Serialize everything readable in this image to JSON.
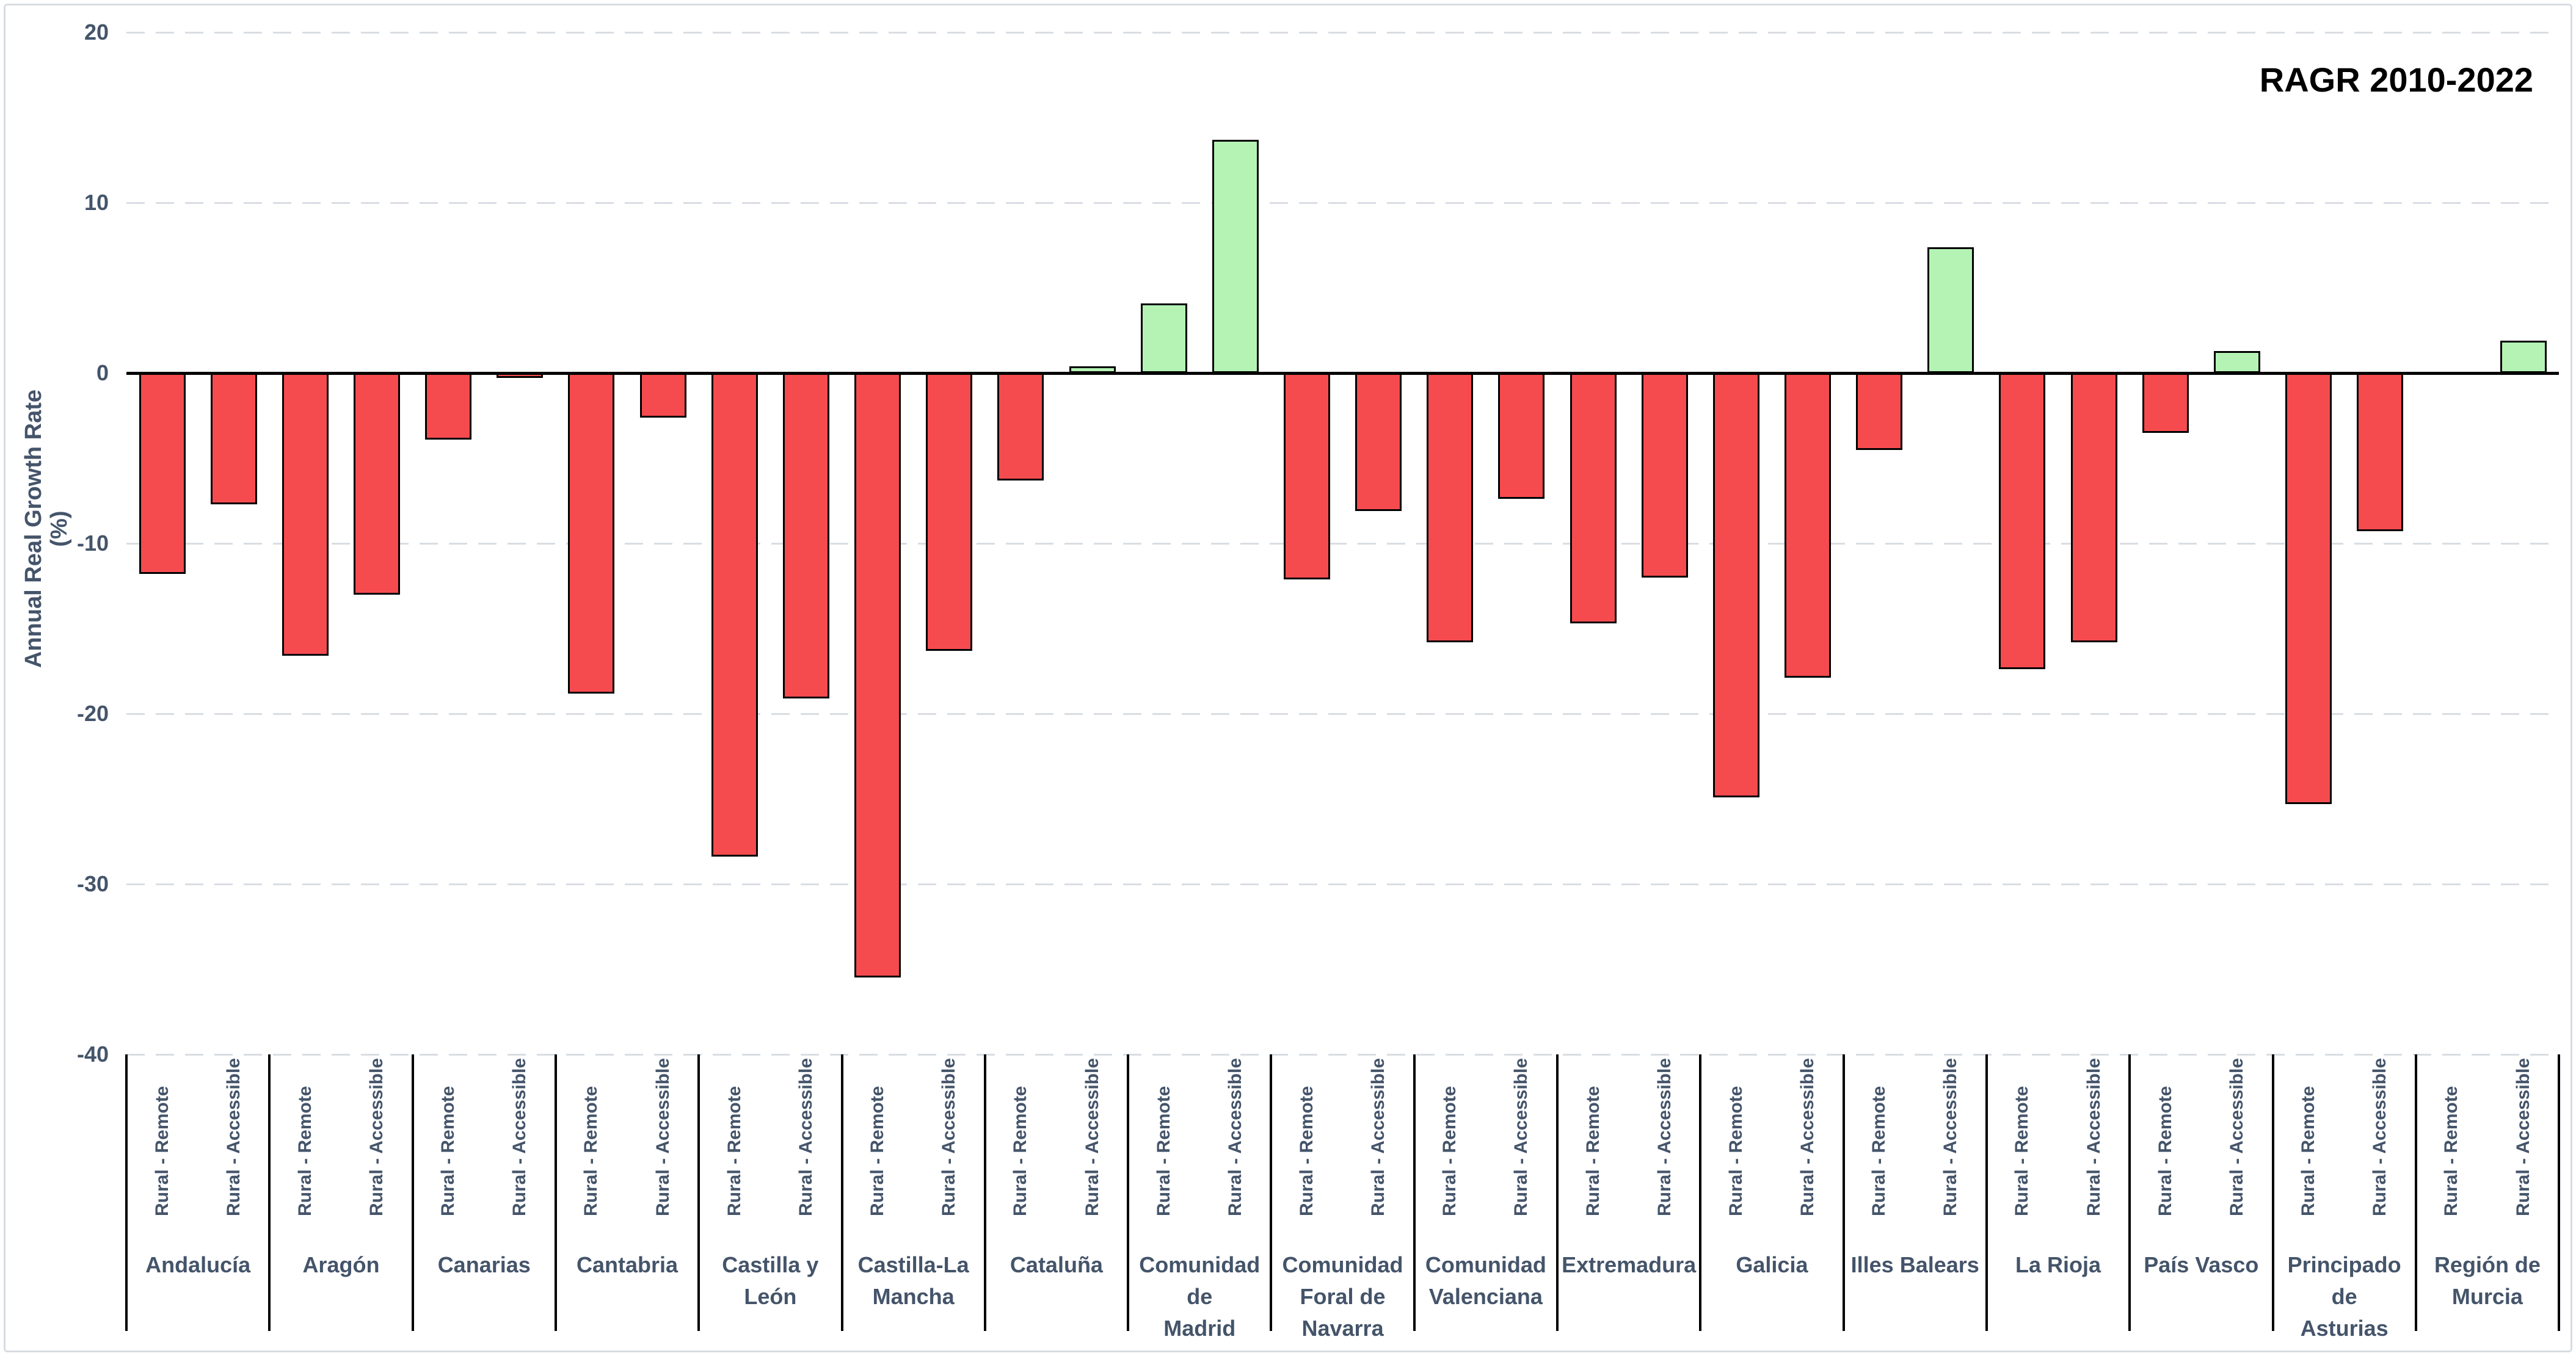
{
  "title": "RAGR 2010-2022",
  "y_axis": {
    "label": "Annual Real Growth Rate (%)",
    "ticks": [
      20,
      10,
      0,
      -10,
      -20,
      -30,
      -40
    ]
  },
  "colors": {
    "positive_fill": "#B5F3B5",
    "negative_fill": "#F54B4F",
    "bar_border": "#000000",
    "axis_text": "#44546A",
    "gridline": "#D9DDE3",
    "zero_line": "#000000",
    "frame_border": "#D8DCE2",
    "title_text": "#000000",
    "background": "#FFFFFF"
  },
  "chart_data": {
    "type": "bar",
    "title": "RAGR 2010-2022",
    "ylabel": "Annual Real Growth Rate (%)",
    "ylim": [
      -40,
      20
    ],
    "grid": "horizontal-dashed",
    "legend": "none",
    "categories": [
      "Andalucía",
      "Aragón",
      "Canarias",
      "Cantabria",
      "Castilla y León",
      "Castilla-La Mancha",
      "Cataluña",
      "Comunidad de Madrid",
      "Comunidad Foral de Navarra",
      "Comunidad Valenciana",
      "Extremadura",
      "Galicia",
      "Illes Balears",
      "La Rioja",
      "País Vasco",
      "Principado de Asturias",
      "Región de Murcia"
    ],
    "category_display_lines": [
      [
        "Andalucía"
      ],
      [
        "Aragón"
      ],
      [
        "Canarias"
      ],
      [
        "Cantabria"
      ],
      [
        "Castilla y León"
      ],
      [
        "Castilla-La",
        "Mancha"
      ],
      [
        "Cataluña"
      ],
      [
        "Comunidad de",
        "Madrid"
      ],
      [
        "Comunidad",
        "Foral de",
        "Navarra"
      ],
      [
        "Comunidad",
        "Valenciana"
      ],
      [
        "Extremadura"
      ],
      [
        "Galicia"
      ],
      [
        "Illes Balears"
      ],
      [
        "La Rioja"
      ],
      [
        "País Vasco"
      ],
      [
        "Principado de",
        "Asturias"
      ],
      [
        "Región de",
        "Murcia"
      ]
    ],
    "series": [
      {
        "name": "Rural - Remote",
        "values": [
          -11.8,
          -16.6,
          -3.9,
          -18.8,
          -28.4,
          -35.5,
          -6.3,
          4.1,
          -12.1,
          -15.8,
          -14.7,
          -24.9,
          -4.5,
          -17.4,
          -3.5,
          -25.3,
          0.0
        ]
      },
      {
        "name": "Rural - Accessible",
        "values": [
          -7.7,
          -13.0,
          -0.3,
          -2.6,
          -19.1,
          -16.3,
          0.4,
          13.7,
          -8.1,
          -7.4,
          -12.0,
          -17.9,
          7.4,
          -15.8,
          1.3,
          -9.3,
          1.9
        ]
      }
    ]
  }
}
